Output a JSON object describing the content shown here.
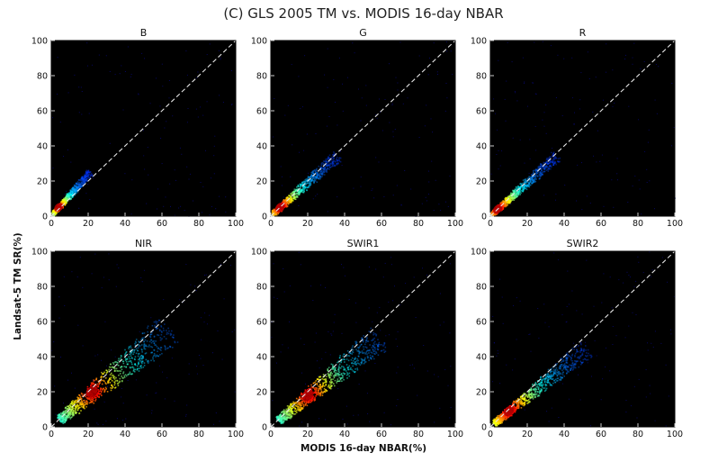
{
  "figure": {
    "title": "(C) GLS 2005 TM vs. MODIS 16-day NBAR",
    "xlabel": "MODIS 16-day NBAR(%)",
    "ylabel": "Landsat-5 TM SR(%)"
  },
  "chart_data": [
    {
      "type": "heatmap",
      "title": "B",
      "xlim": [
        0,
        100
      ],
      "ylim": [
        0,
        100
      ],
      "xticks": [
        0,
        20,
        40,
        60,
        80,
        100
      ],
      "yticks": [
        0,
        20,
        40,
        60,
        80,
        100
      ],
      "reference_line": "1:1",
      "density": {
        "center": [
          4,
          5
        ],
        "x_extent": 20,
        "y_extent": 25,
        "spread": 0.8
      }
    },
    {
      "type": "heatmap",
      "title": "G",
      "xlim": [
        0,
        100
      ],
      "ylim": [
        0,
        100
      ],
      "xticks": [
        0,
        20,
        40,
        60,
        80,
        100
      ],
      "yticks": [
        0,
        20,
        40,
        60,
        80,
        100
      ],
      "reference_line": "1:1",
      "density": {
        "center": [
          5,
          5
        ],
        "x_extent": 35,
        "y_extent": 30,
        "spread": 1.0
      }
    },
    {
      "type": "heatmap",
      "title": "R",
      "xlim": [
        0,
        100
      ],
      "ylim": [
        0,
        100
      ],
      "xticks": [
        0,
        20,
        40,
        60,
        80,
        100
      ],
      "yticks": [
        0,
        20,
        40,
        60,
        80,
        100
      ],
      "reference_line": "1:1",
      "density": {
        "center": [
          4,
          4
        ],
        "x_extent": 35,
        "y_extent": 30,
        "spread": 0.9
      }
    },
    {
      "type": "heatmap",
      "title": "NIR",
      "xlim": [
        0,
        100
      ],
      "ylim": [
        0,
        100
      ],
      "xticks": [
        0,
        20,
        40,
        60,
        80,
        100
      ],
      "yticks": [
        0,
        20,
        40,
        60,
        80,
        100
      ],
      "reference_line": "1:1",
      "density": {
        "center": [
          22,
          20
        ],
        "x_extent": 60,
        "y_extent": 55,
        "spread": 1.8
      }
    },
    {
      "type": "heatmap",
      "title": "SWIR1",
      "xlim": [
        0,
        100
      ],
      "ylim": [
        0,
        100
      ],
      "xticks": [
        0,
        20,
        40,
        60,
        80,
        100
      ],
      "yticks": [
        0,
        20,
        40,
        60,
        80,
        100
      ],
      "reference_line": "1:1",
      "density": {
        "center": [
          20,
          18
        ],
        "x_extent": 55,
        "y_extent": 50,
        "spread": 1.6
      }
    },
    {
      "type": "heatmap",
      "title": "SWIR2",
      "xlim": [
        0,
        100
      ],
      "ylim": [
        0,
        100
      ],
      "xticks": [
        0,
        20,
        40,
        60,
        80,
        100
      ],
      "yticks": [
        0,
        20,
        40,
        60,
        80,
        100
      ],
      "reference_line": "1:1",
      "density": {
        "center": [
          10,
          9
        ],
        "x_extent": 50,
        "y_extent": 45,
        "spread": 1.2
      }
    }
  ]
}
